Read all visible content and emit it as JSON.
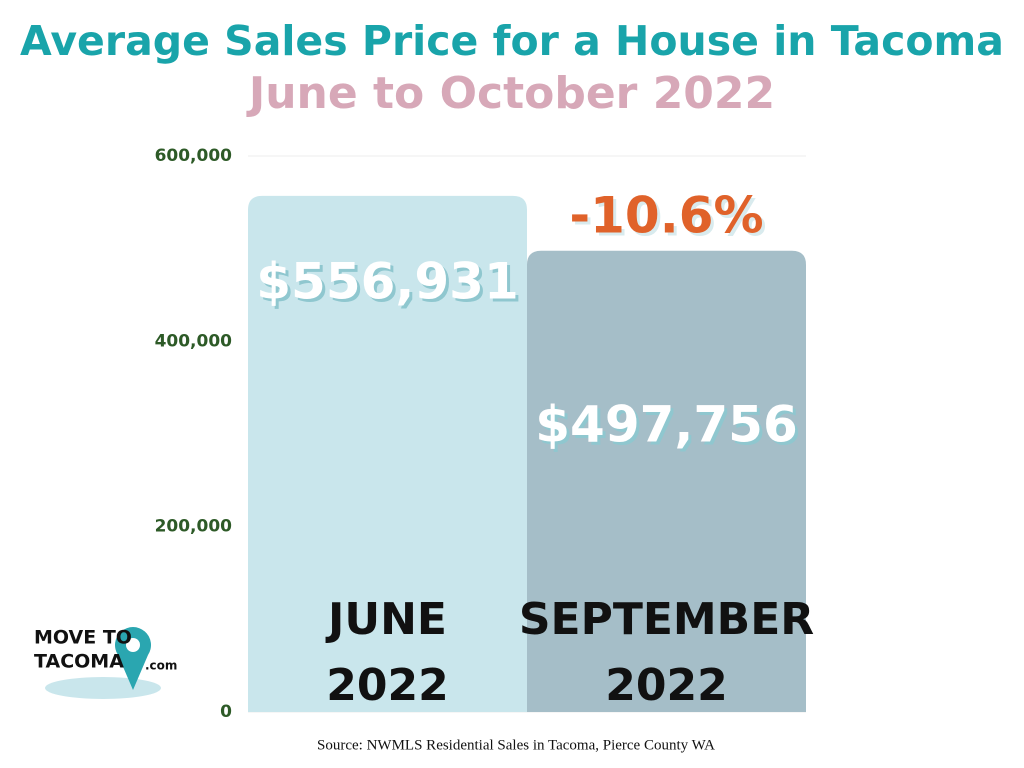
{
  "chart_data": {
    "type": "bar",
    "title": "Average Sales Price for a House in Tacoma",
    "subtitle": "June to October 2022",
    "categories": [
      "JUNE 2022",
      "SEPTEMBER 2022"
    ],
    "values": [
      556931,
      497756
    ],
    "value_labels": [
      "$556,931",
      "$497,756"
    ],
    "colors": [
      "#c9e6ec",
      "#a5bec8"
    ],
    "ylim": [
      0,
      600000
    ],
    "yticks": [
      0,
      {
        "value": 200000,
        "label": "200,000"
      },
      {
        "value": 400000,
        "label": "400,000"
      },
      {
        "value": 600000,
        "label": "600,000"
      }
    ],
    "grid": true,
    "annotation": "-10.6%",
    "source": "Source: NWMLS Residential Sales in Tacoma, Pierce County WA"
  },
  "logo": {
    "line1": "MOVE TO",
    "line2": "TACOMA",
    "suffix": ".com"
  }
}
